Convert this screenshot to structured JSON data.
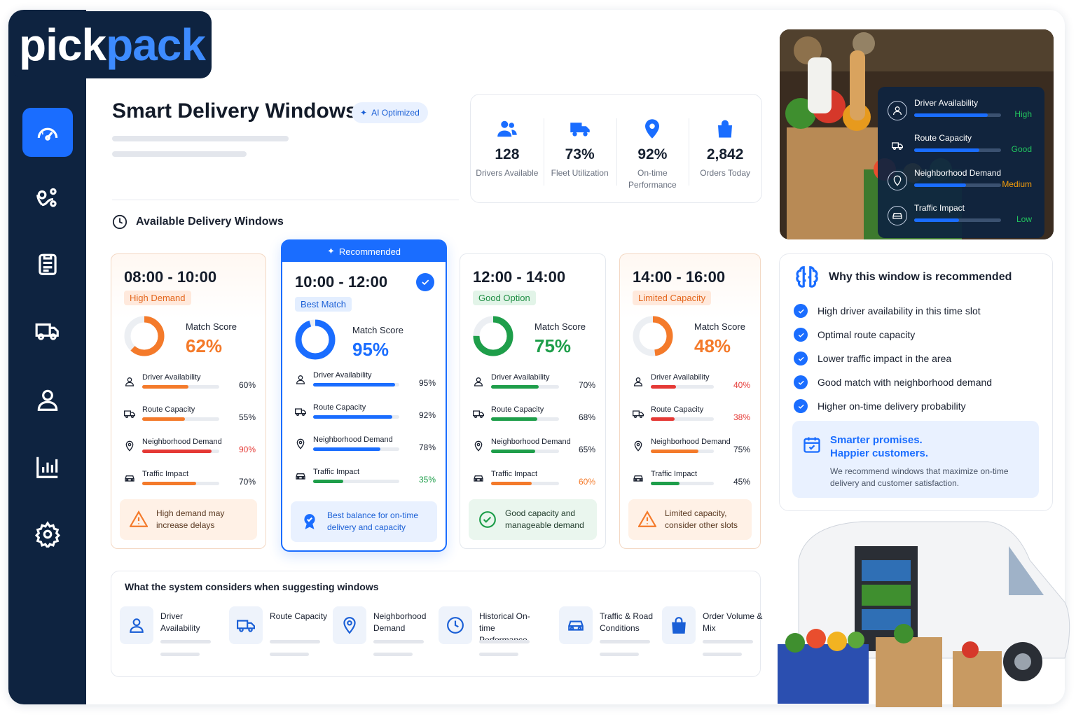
{
  "brand": {
    "name_a": "pick",
    "name_b": "pack"
  },
  "colors": {
    "accent": "#1a6dff",
    "sidebar": "#0e2340",
    "orange": "#f47a2a",
    "red": "#e53935",
    "green": "#1e9e4a"
  },
  "nav": [
    {
      "icon": "dashboard-gauge-icon",
      "active": true
    },
    {
      "icon": "route-pin-icon"
    },
    {
      "icon": "clipboard-icon"
    },
    {
      "icon": "delivery-truck-icon"
    },
    {
      "icon": "user-icon"
    },
    {
      "icon": "analytics-chart-icon"
    },
    {
      "icon": "settings-gear-icon"
    }
  ],
  "header": {
    "title": "Smart Delivery Windows",
    "badge": "AI Optimized"
  },
  "stats": [
    {
      "value": "128",
      "label": "Drivers Available",
      "icon": "drivers-icon"
    },
    {
      "value": "73%",
      "label": "Fleet Utilization",
      "icon": "truck-icon"
    },
    {
      "value": "92%",
      "label": "On-time Performance",
      "icon": "location-pin-icon"
    },
    {
      "value": "2,842",
      "label": "Orders Today",
      "icon": "shopping-bag-icon"
    }
  ],
  "section": {
    "title": "Available Delivery Windows",
    "match_label": "Match Score"
  },
  "windows": [
    {
      "time": "08:00 - 10:00",
      "tag": "High Demand",
      "score": "62%",
      "score_num": 62,
      "color": "#f47a2a",
      "metrics": [
        {
          "label": "Driver Availability",
          "value": "60%",
          "pct": 60
        },
        {
          "label": "Route Capacity",
          "value": "55%",
          "pct": 55
        },
        {
          "label": "Neighborhood Demand",
          "value": "90%",
          "pct": 90
        },
        {
          "label": "Traffic Impact",
          "value": "70%",
          "pct": 70
        }
      ],
      "note": "High demand may increase delays"
    },
    {
      "time": "10:00 - 12:00",
      "tag": "Best Match",
      "score": "95%",
      "score_num": 95,
      "color": "#1a6dff",
      "recommended": "Recommended",
      "metrics": [
        {
          "label": "Driver Availability",
          "value": "95%",
          "pct": 95
        },
        {
          "label": "Route Capacity",
          "value": "92%",
          "pct": 92
        },
        {
          "label": "Neighborhood Demand",
          "value": "78%",
          "pct": 78
        },
        {
          "label": "Traffic Impact",
          "value": "35%",
          "pct": 35
        }
      ],
      "note": "Best balance for on-time delivery and capacity"
    },
    {
      "time": "12:00 - 14:00",
      "tag": "Good Option",
      "score": "75%",
      "score_num": 75,
      "color": "#1e9e4a",
      "metrics": [
        {
          "label": "Driver Availability",
          "value": "70%",
          "pct": 70
        },
        {
          "label": "Route Capacity",
          "value": "68%",
          "pct": 68
        },
        {
          "label": "Neighborhood Demand",
          "value": "65%",
          "pct": 65
        },
        {
          "label": "Traffic Impact",
          "value": "60%",
          "pct": 60
        }
      ],
      "note": "Good capacity and manageable demand"
    },
    {
      "time": "14:00 - 16:00",
      "tag": "Limited Capacity",
      "score": "48%",
      "score_num": 48,
      "color": "#f47a2a",
      "metrics": [
        {
          "label": "Driver Availability",
          "value": "40%",
          "pct": 40
        },
        {
          "label": "Route Capacity",
          "value": "38%",
          "pct": 38
        },
        {
          "label": "Neighborhood Demand",
          "value": "75%",
          "pct": 75
        },
        {
          "label": "Traffic Impact",
          "value": "45%",
          "pct": 45
        }
      ],
      "note": "Limited capacity, consider other slots"
    }
  ],
  "considers": {
    "title": "What the system considers when suggesting windows",
    "items": [
      {
        "label": "Driver Availability",
        "icon": "user-icon"
      },
      {
        "label": "Route Capacity",
        "icon": "truck-icon"
      },
      {
        "label": "Neighborhood Demand",
        "icon": "location-pin-icon"
      },
      {
        "label": "Historical On-time Performance",
        "icon": "clock-icon"
      },
      {
        "label": "Traffic & Road Conditions",
        "icon": "car-icon"
      },
      {
        "label": "Order Volume & Mix",
        "icon": "shopping-bag-icon"
      }
    ]
  },
  "overlay": [
    {
      "label": "Driver Availability",
      "status": "High",
      "fill": 0.85,
      "color": "#22c55e"
    },
    {
      "label": "Route Capacity",
      "status": "Good",
      "fill": 0.75,
      "color": "#22c55e"
    },
    {
      "label": "Neighborhood Demand",
      "status": "Medium",
      "fill": 0.6,
      "color": "#f59e0b"
    },
    {
      "label": "Traffic Impact",
      "status": "Low",
      "fill": 0.52,
      "color": "#22c55e"
    }
  ],
  "why": {
    "title": "Why this window is recommended",
    "reasons": [
      "High driver availability in this time slot",
      "Optimal route capacity",
      "Lower traffic impact in the area",
      "Good match with neighborhood demand",
      "Higher on-time delivery probability"
    ],
    "promise_title_1": "Smarter promises.",
    "promise_title_2": "Happier customers.",
    "promise_text": "We recommend windows that maximize on-time delivery and customer satisfaction."
  }
}
